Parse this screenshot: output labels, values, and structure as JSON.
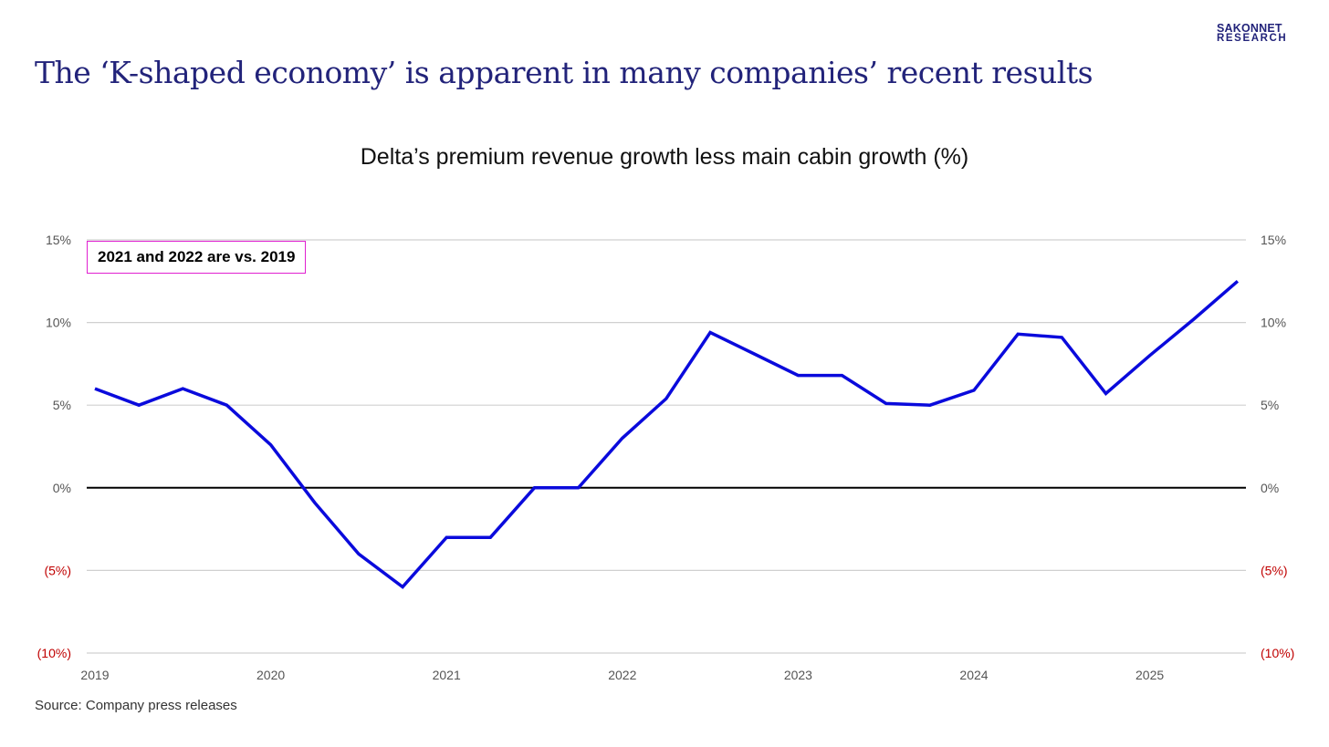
{
  "header": {
    "title": "The ‘K-shaped economy’ is apparent in many companies’ recent results",
    "logo_line1": "SAKONNET",
    "logo_line2": "RESEARCH"
  },
  "footer": {
    "source": "Source: Company press releases"
  },
  "colors": {
    "line": "#0a0adc",
    "title": "#22237a",
    "negative_tick": "#c00000",
    "note_border": "#e020d0"
  },
  "chart_data": {
    "type": "line",
    "title": "Delta’s premium revenue growth less main cabin growth (%)",
    "annotation": "2021 and 2022 are vs. 2019",
    "xlabel": "",
    "ylabel": "",
    "ylim": [
      -10,
      15
    ],
    "yticks": [
      15,
      10,
      5,
      0,
      -5,
      -10
    ],
    "ytick_labels": [
      "15%",
      "10%",
      "5%",
      "0%",
      "(5%)",
      "(10%)"
    ],
    "xtick_labels": [
      "2019",
      "2020",
      "2021",
      "2022",
      "2023",
      "2024",
      "2025"
    ],
    "grid": true,
    "series": [
      {
        "name": "Premium less main cabin growth",
        "x": [
          "2019Q1",
          "2019Q2",
          "2019Q3",
          "2019Q4",
          "2020Q1",
          "2020Q2",
          "2020Q3",
          "2020Q4",
          "2021Q1",
          "2021Q2",
          "2021Q3",
          "2021Q4",
          "2022Q1",
          "2022Q2",
          "2022Q3",
          "2022Q4",
          "2023Q1",
          "2023Q2",
          "2023Q3",
          "2023Q4",
          "2024Q1",
          "2024Q2",
          "2024Q3",
          "2024Q4",
          "2025Q1",
          "2025Q2",
          "2025Q3"
        ],
        "values": [
          6.0,
          5.0,
          6.0,
          5.0,
          2.6,
          -0.9,
          -4.0,
          -6.0,
          -3.0,
          -3.0,
          0.0,
          0.0,
          3.0,
          5.4,
          9.4,
          8.1,
          6.8,
          6.8,
          5.1,
          5.0,
          5.9,
          9.3,
          9.1,
          5.7,
          8.0,
          10.2,
          12.5
        ]
      }
    ]
  }
}
